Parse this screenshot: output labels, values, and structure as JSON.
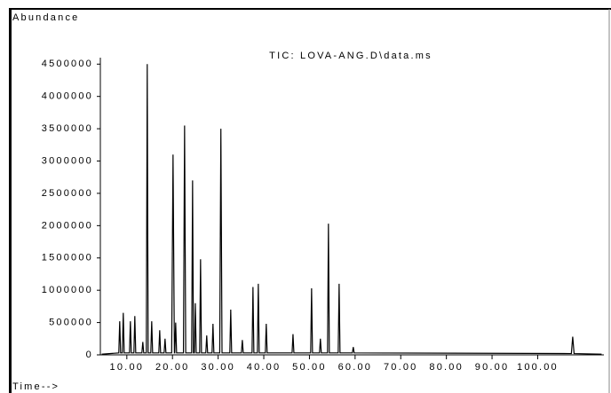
{
  "chart_data": {
    "type": "line",
    "title": "TIC: LOVA-ANG.D\\data.ms",
    "y_label": "Abundance",
    "x_label": "Time-->",
    "color": "#000000",
    "x": [
      4.5,
      8.24,
      8.44,
      8.64,
      9.02,
      9.22,
      9.42,
      10.58,
      10.78,
      10.98,
      11.55,
      11.75,
      11.95,
      13.3,
      13.5,
      13.7,
      14.27,
      14.47,
      14.67,
      15.25,
      15.45,
      15.65,
      17.0,
      17.2,
      17.4,
      18.17,
      18.37,
      18.57,
      19.82,
      20.12,
      20.42,
      20.5,
      20.7,
      20.9,
      22.4,
      22.65,
      22.9,
      24.2,
      24.4,
      24.6,
      24.8,
      25.0,
      25.2,
      25.95,
      26.15,
      26.35,
      27.3,
      27.5,
      27.7,
      28.67,
      28.87,
      29.07,
      30.35,
      30.6,
      30.85,
      32.56,
      32.76,
      32.96,
      35.1,
      35.3,
      35.5,
      37.43,
      37.63,
      37.83,
      38.6,
      38.8,
      39.0,
      40.34,
      40.54,
      40.74,
      46.2,
      46.4,
      46.6,
      50.27,
      50.47,
      50.67,
      52.2,
      52.4,
      52.6,
      53.96,
      54.16,
      54.36,
      56.3,
      56.5,
      56.7,
      59.4,
      59.6,
      59.8,
      107.37,
      107.67,
      107.97,
      114
    ],
    "values": [
      10000,
      30000,
      520000,
      30000,
      30000,
      650000,
      30000,
      30000,
      520000,
      30000,
      30000,
      600000,
      30000,
      30000,
      200000,
      30000,
      30000,
      4500000,
      30000,
      30000,
      520000,
      30000,
      30000,
      380000,
      30000,
      30000,
      250000,
      30000,
      30000,
      3100000,
      30000,
      30000,
      500000,
      30000,
      30000,
      3550000,
      30000,
      30000,
      2700000,
      30000,
      30000,
      800000,
      30000,
      30000,
      1480000,
      30000,
      30000,
      300000,
      30000,
      30000,
      480000,
      30000,
      30000,
      3500000,
      30000,
      30000,
      700000,
      30000,
      30000,
      230000,
      30000,
      30000,
      1050000,
      30000,
      30000,
      1100000,
      30000,
      30000,
      480000,
      30000,
      30000,
      320000,
      30000,
      30000,
      1030000,
      30000,
      30000,
      250000,
      30000,
      30000,
      2030000,
      30000,
      30000,
      1100000,
      30000,
      30000,
      120000,
      30000,
      20000,
      280000,
      20000,
      10000
    ],
    "xlim": [
      4.2,
      114.5
    ],
    "ylim": [
      0,
      4600000
    ],
    "xticks": [
      {
        "value": 10,
        "label": "10.00"
      },
      {
        "value": 20,
        "label": "20.00"
      },
      {
        "value": 30,
        "label": "30.00"
      },
      {
        "value": 40,
        "label": "40.00"
      },
      {
        "value": 50,
        "label": "50.00"
      },
      {
        "value": 60,
        "label": "60.00"
      },
      {
        "value": 70,
        "label": "70.00"
      },
      {
        "value": 80,
        "label": "80.00"
      },
      {
        "value": 90,
        "label": "90.00"
      },
      {
        "value": 100,
        "label": "100.00"
      }
    ],
    "yticks": [
      0,
      500000,
      1000000,
      1500000,
      2000000,
      2500000,
      3000000,
      3500000,
      4000000,
      4500000
    ],
    "grid": false
  }
}
